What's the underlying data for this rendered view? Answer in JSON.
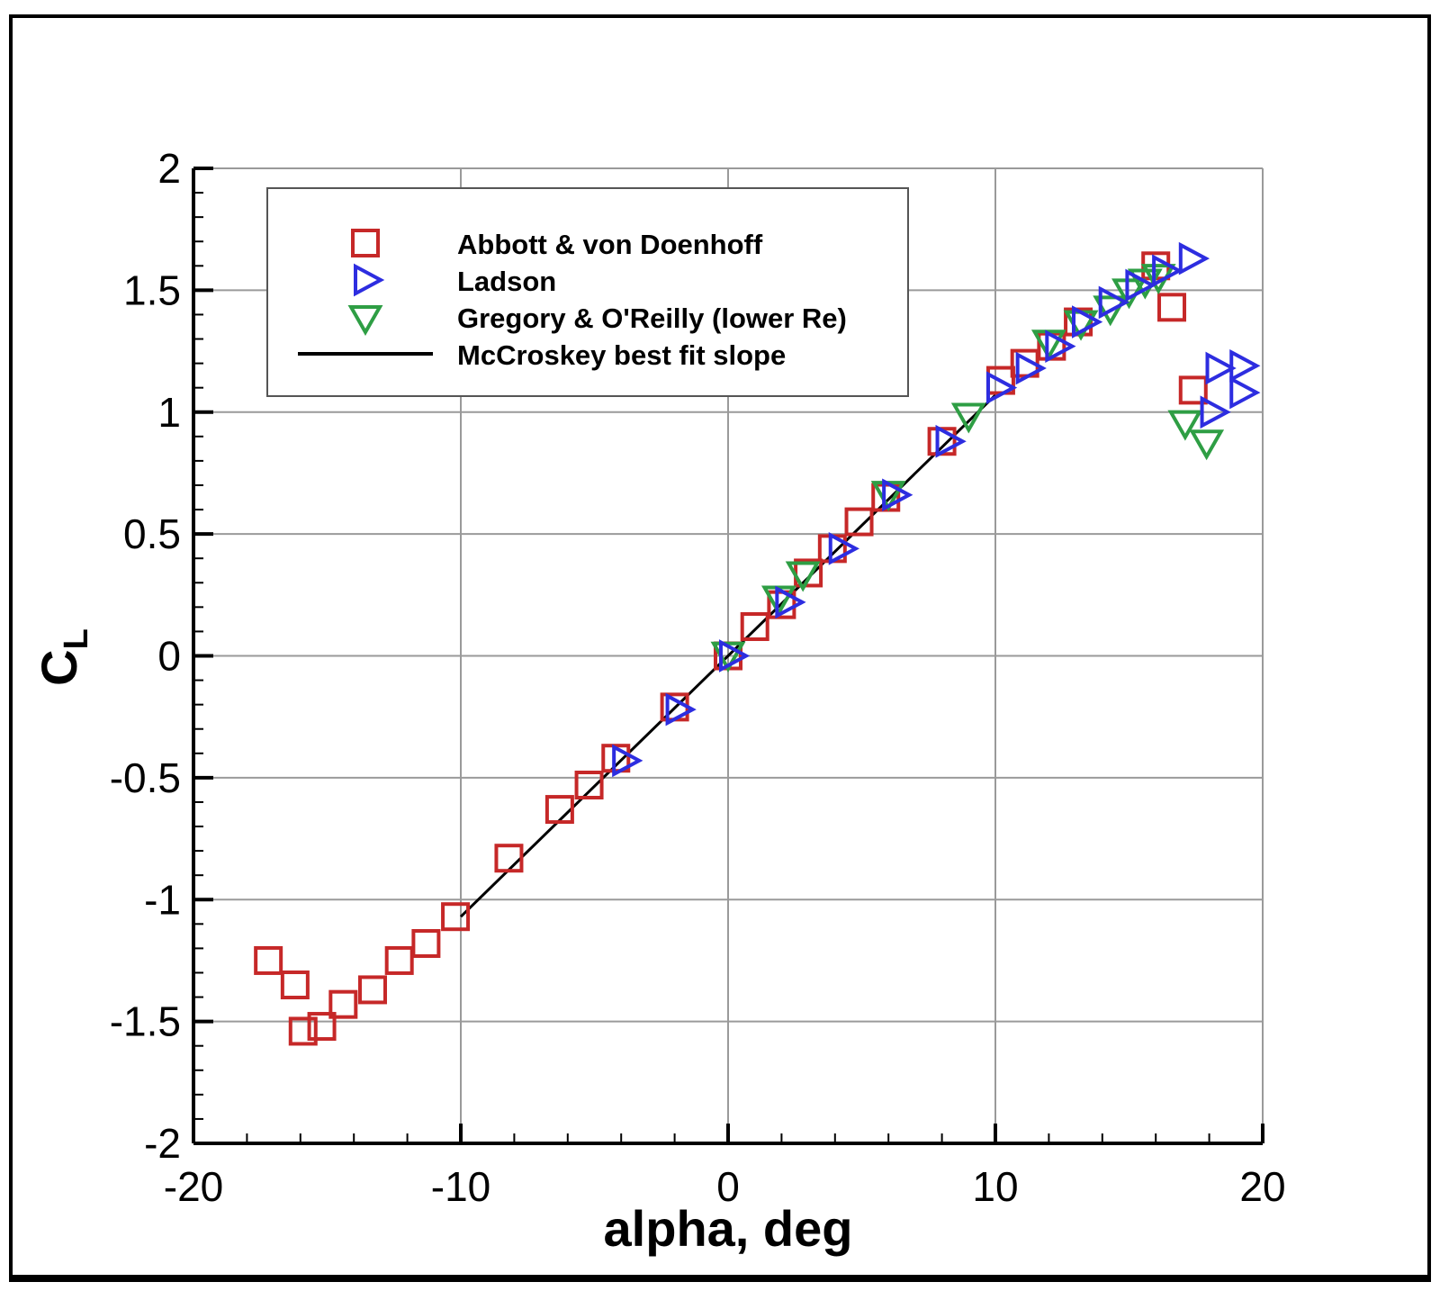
{
  "chart_data": {
    "type": "scatter",
    "title": "",
    "xlabel": "alpha, deg",
    "ylabel": "C",
    "ylabel_subscript": "L",
    "xlim": [
      -20,
      20
    ],
    "ylim": [
      -2,
      2
    ],
    "xticks": [
      "-20",
      "-10",
      "0",
      "10",
      "20"
    ],
    "yticks": [
      "-2",
      "-1.5",
      "-1",
      "-0.5",
      "0",
      "0.5",
      "1",
      "1.5",
      "2"
    ],
    "grid": true,
    "legend_position": "top-left",
    "series": [
      {
        "name": "Abbott & von Doenhoff",
        "marker": "square",
        "color": "#c62828",
        "points": [
          [
            -17.2,
            -1.25
          ],
          [
            -16.2,
            -1.35
          ],
          [
            -15.9,
            -1.54
          ],
          [
            -15.2,
            -1.52
          ],
          [
            -14.4,
            -1.43
          ],
          [
            -13.3,
            -1.37
          ],
          [
            -12.3,
            -1.25
          ],
          [
            -11.3,
            -1.18
          ],
          [
            -10.2,
            -1.07
          ],
          [
            -8.2,
            -0.83
          ],
          [
            -6.3,
            -0.63
          ],
          [
            -5.2,
            -0.53
          ],
          [
            -4.2,
            -0.42
          ],
          [
            -2.0,
            -0.21
          ],
          [
            0.0,
            0.0
          ],
          [
            1.0,
            0.12
          ],
          [
            2.0,
            0.21
          ],
          [
            3.0,
            0.34
          ],
          [
            3.9,
            0.44
          ],
          [
            4.9,
            0.55
          ],
          [
            5.9,
            0.65
          ],
          [
            8.0,
            0.88
          ],
          [
            10.2,
            1.13
          ],
          [
            11.1,
            1.2
          ],
          [
            12.1,
            1.27
          ],
          [
            13.1,
            1.37
          ],
          [
            16.0,
            1.6
          ],
          [
            16.6,
            1.43
          ],
          [
            17.4,
            1.09
          ]
        ]
      },
      {
        "name": "Ladson",
        "marker": "triangle-right",
        "color": "#2d2de0",
        "points": [
          [
            -3.9,
            -0.43
          ],
          [
            -1.9,
            -0.22
          ],
          [
            0.1,
            0.0
          ],
          [
            2.2,
            0.22
          ],
          [
            4.2,
            0.44
          ],
          [
            6.2,
            0.66
          ],
          [
            8.2,
            0.88
          ],
          [
            10.1,
            1.1
          ],
          [
            11.2,
            1.18
          ],
          [
            12.3,
            1.27
          ],
          [
            13.3,
            1.37
          ],
          [
            14.3,
            1.45
          ],
          [
            15.3,
            1.52
          ],
          [
            16.3,
            1.58
          ],
          [
            17.3,
            1.63
          ],
          [
            18.1,
            1.0
          ],
          [
            18.3,
            1.18
          ],
          [
            19.2,
            1.19
          ],
          [
            19.2,
            1.08
          ]
        ]
      },
      {
        "name": "Gregory & O'Reilly (lower Re)",
        "marker": "triangle-down",
        "color": "#2e9e44",
        "points": [
          [
            0.0,
            0.01
          ],
          [
            1.9,
            0.24
          ],
          [
            2.8,
            0.34
          ],
          [
            6.0,
            0.67
          ],
          [
            9.0,
            0.99
          ],
          [
            12.0,
            1.29
          ],
          [
            13.2,
            1.37
          ],
          [
            14.3,
            1.43
          ],
          [
            15.0,
            1.5
          ],
          [
            15.6,
            1.54
          ],
          [
            16.1,
            1.56
          ],
          [
            17.1,
            0.96
          ],
          [
            17.9,
            0.88
          ]
        ]
      },
      {
        "name": "McCroskey best fit slope",
        "marker": "line",
        "color": "#000000",
        "points": [
          [
            -10,
            -1.07
          ],
          [
            10,
            1.07
          ]
        ]
      }
    ]
  }
}
